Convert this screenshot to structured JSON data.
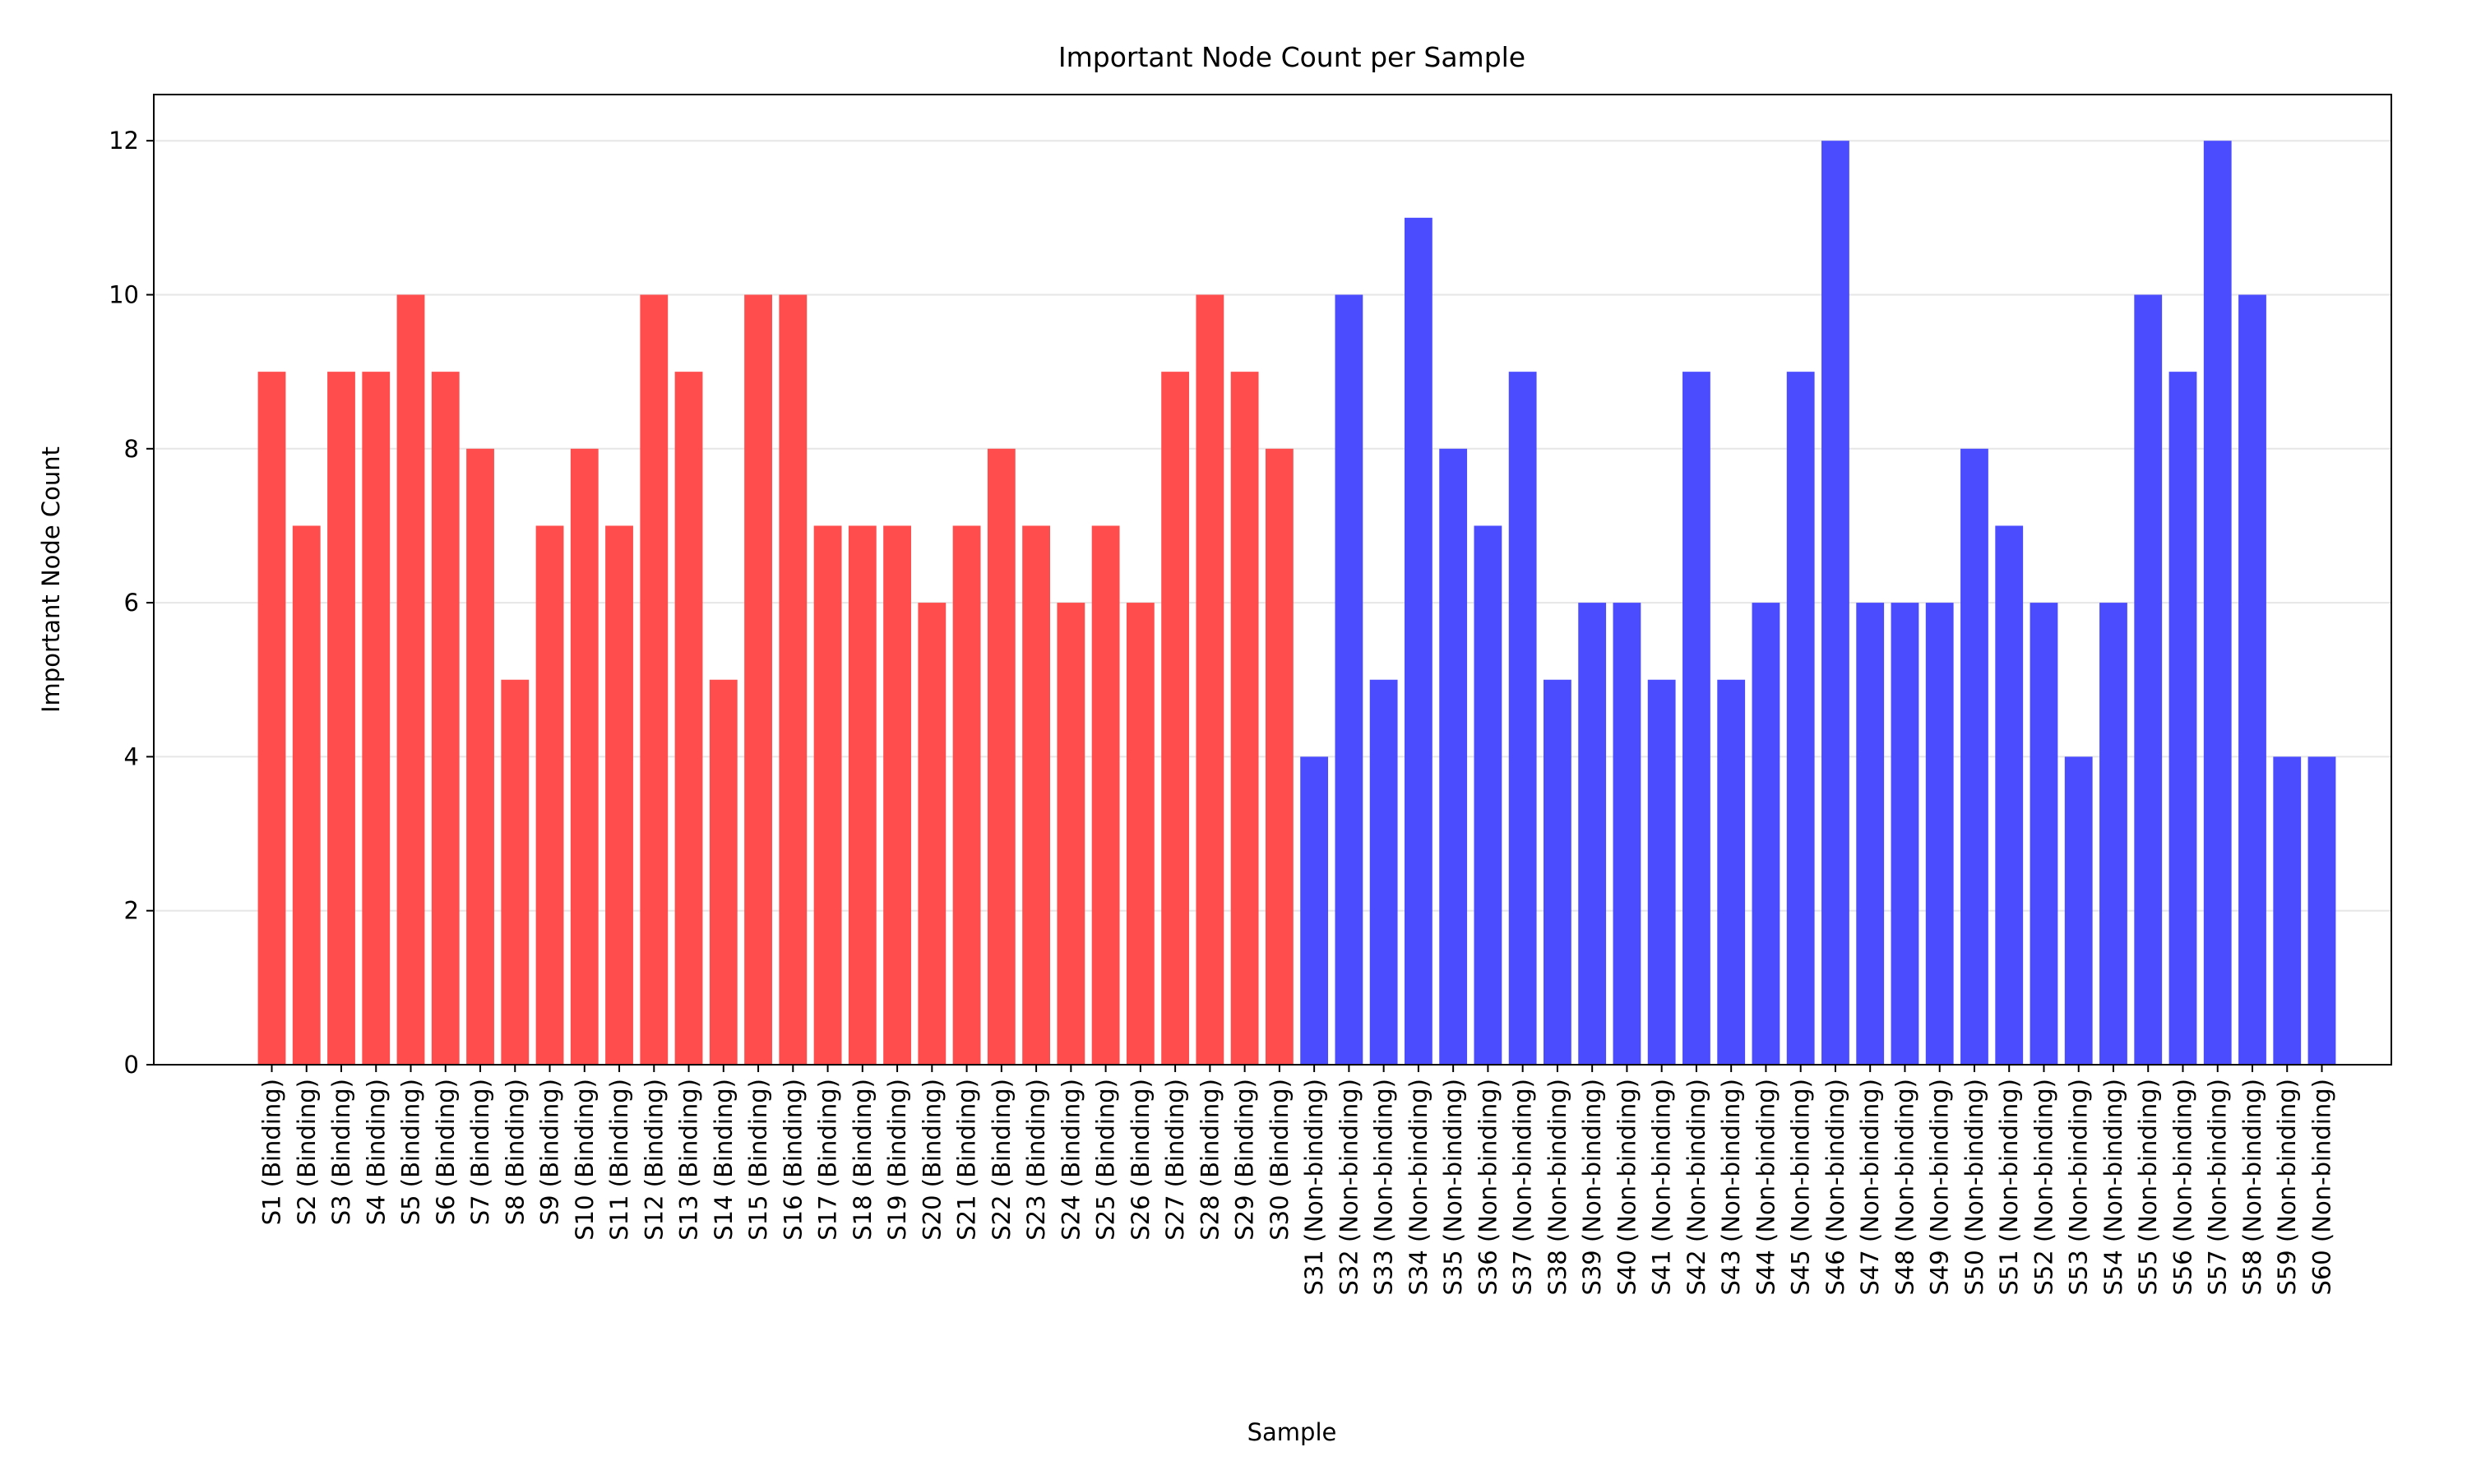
{
  "chart_data": {
    "type": "bar",
    "title": "Important Node Count per Sample",
    "xlabel": "Sample",
    "ylabel": "Important Node Count",
    "ylim": [
      0,
      12.6
    ],
    "yticks": [
      0,
      2,
      4,
      6,
      8,
      10,
      12
    ],
    "grid": "horizontal",
    "categories": [
      "S1 (Binding)",
      "S2 (Binding)",
      "S3 (Binding)",
      "S4 (Binding)",
      "S5 (Binding)",
      "S6 (Binding)",
      "S7 (Binding)",
      "S8 (Binding)",
      "S9 (Binding)",
      "S10 (Binding)",
      "S11 (Binding)",
      "S12 (Binding)",
      "S13 (Binding)",
      "S14 (Binding)",
      "S15 (Binding)",
      "S16 (Binding)",
      "S17 (Binding)",
      "S18 (Binding)",
      "S19 (Binding)",
      "S20 (Binding)",
      "S21 (Binding)",
      "S22 (Binding)",
      "S23 (Binding)",
      "S24 (Binding)",
      "S25 (Binding)",
      "S26 (Binding)",
      "S27 (Binding)",
      "S28 (Binding)",
      "S29 (Binding)",
      "S30 (Binding)",
      "S31 (Non-binding)",
      "S32 (Non-binding)",
      "S33 (Non-binding)",
      "S34 (Non-binding)",
      "S35 (Non-binding)",
      "S36 (Non-binding)",
      "S37 (Non-binding)",
      "S38 (Non-binding)",
      "S39 (Non-binding)",
      "S40 (Non-binding)",
      "S41 (Non-binding)",
      "S42 (Non-binding)",
      "S43 (Non-binding)",
      "S44 (Non-binding)",
      "S45 (Non-binding)",
      "S46 (Non-binding)",
      "S47 (Non-binding)",
      "S48 (Non-binding)",
      "S49 (Non-binding)",
      "S50 (Non-binding)",
      "S51 (Non-binding)",
      "S52 (Non-binding)",
      "S53 (Non-binding)",
      "S54 (Non-binding)",
      "S55 (Non-binding)",
      "S56 (Non-binding)",
      "S57 (Non-binding)",
      "S58 (Non-binding)",
      "S59 (Non-binding)",
      "S60 (Non-binding)"
    ],
    "values": [
      9,
      7,
      9,
      9,
      10,
      9,
      8,
      5,
      7,
      8,
      7,
      10,
      9,
      5,
      10,
      10,
      7,
      7,
      7,
      6,
      7,
      8,
      7,
      6,
      7,
      6,
      9,
      10,
      9,
      8,
      4,
      10,
      5,
      11,
      8,
      7,
      9,
      5,
      6,
      6,
      5,
      9,
      5,
      6,
      9,
      12,
      6,
      6,
      6,
      8,
      7,
      6,
      4,
      6,
      10,
      9,
      12,
      10,
      4,
      4
    ],
    "bar_colors": {
      "binding": "#ff4c4c",
      "non_binding": "#4c4cff"
    }
  }
}
